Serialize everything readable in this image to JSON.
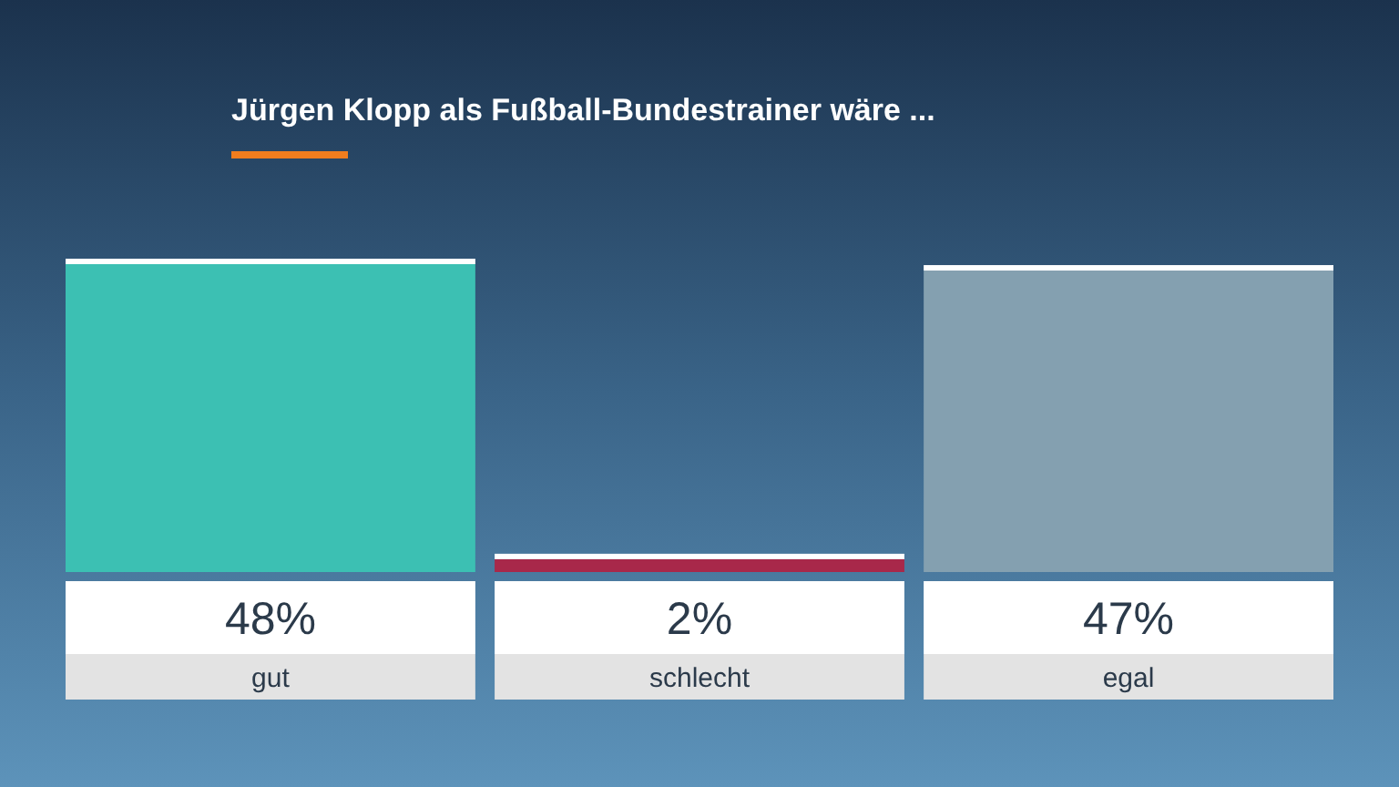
{
  "chart_data": {
    "type": "bar",
    "title": "Jürgen Klopp als Fußball-Bundestrainer wäre ...",
    "categories": [
      "gut",
      "schlecht",
      "egal"
    ],
    "values": [
      48,
      2,
      47
    ],
    "colors": [
      "#3cc0b3",
      "#a8284a",
      "#84a0b0"
    ],
    "value_labels": [
      "48%",
      "2%",
      "47%"
    ]
  }
}
